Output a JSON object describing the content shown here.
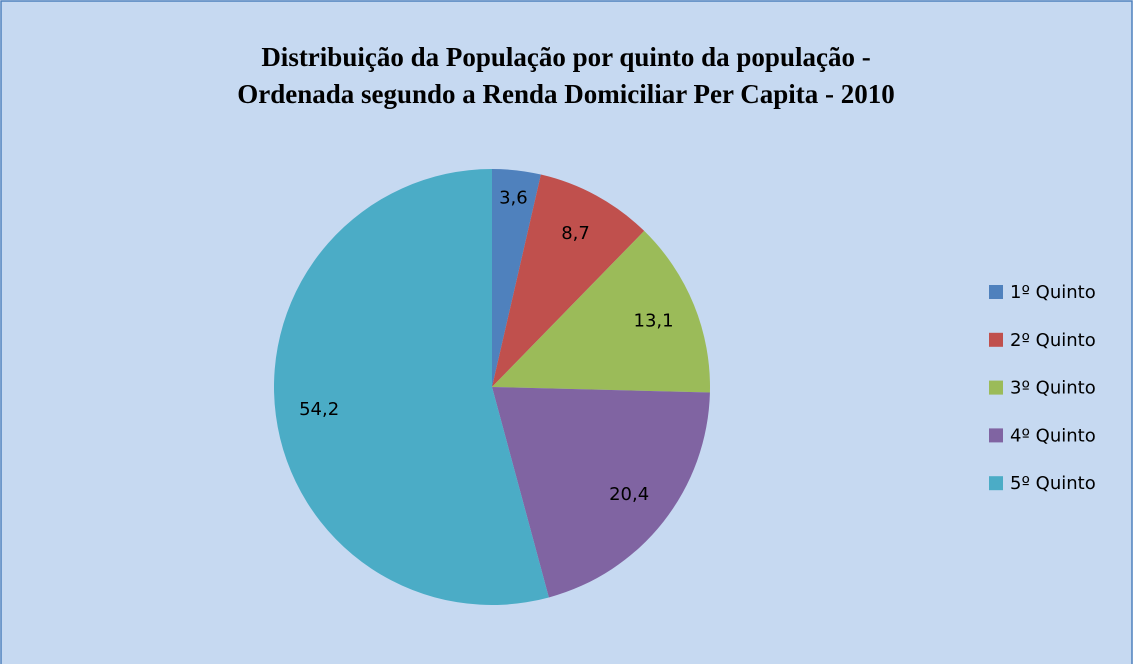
{
  "chart_data": {
    "type": "pie",
    "title": "Distribuição da População por quinto da população - Ordenada segundo a Renda Domiciliar Per Capita - 2010",
    "categories": [
      "1º Quinto",
      "2º Quinto",
      "3º Quinto",
      "4º Quinto",
      "5º Quinto"
    ],
    "values": [
      3.6,
      8.7,
      13.1,
      20.4,
      54.2
    ],
    "value_labels": [
      "3,6",
      "8,7",
      "13,1",
      "20,4",
      "54,2"
    ],
    "colors": [
      "#4f81bd",
      "#c0504d",
      "#9bbb59",
      "#8064a2",
      "#4bacc6"
    ],
    "legend": "right"
  }
}
